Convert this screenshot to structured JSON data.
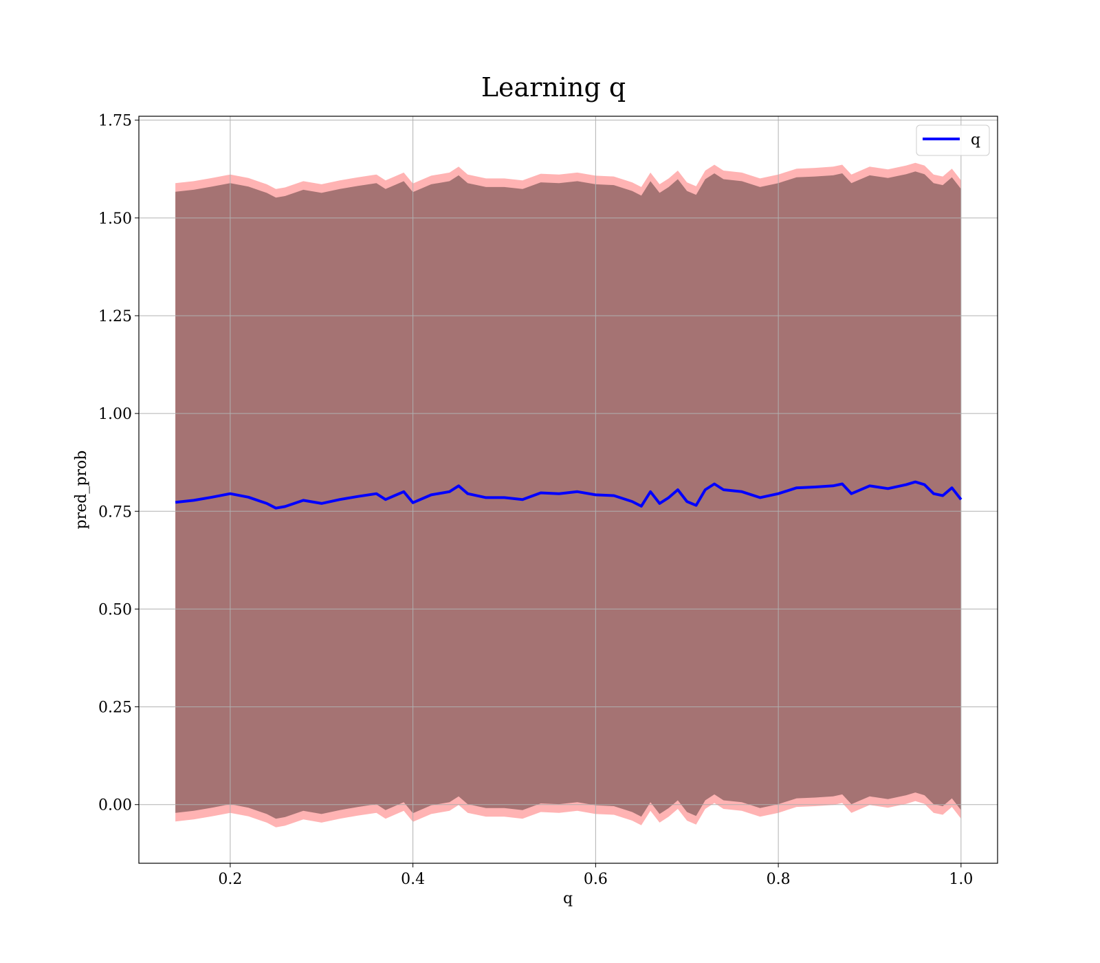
{
  "chart_data": {
    "type": "line",
    "title": "Learning q",
    "xlabel": "q",
    "ylabel": "pred_prob",
    "xlim": [
      0.1,
      1.04
    ],
    "ylim": [
      -0.15,
      1.76
    ],
    "xticks": [
      0.2,
      0.4,
      0.6,
      0.8,
      1.0
    ],
    "xtick_labels": [
      "0.2",
      "0.4",
      "0.6",
      "0.8",
      "1.0"
    ],
    "yticks": [
      0.0,
      0.25,
      0.5,
      0.75,
      1.0,
      1.25,
      1.5,
      1.75
    ],
    "ytick_labels": [
      "0.00",
      "0.25",
      "0.50",
      "0.75",
      "1.00",
      "1.25",
      "1.50",
      "1.75"
    ],
    "grid": true,
    "legend_position": "top-right",
    "series": [
      {
        "name": "q",
        "color": "#0000ff",
        "x": [
          0.14,
          0.16,
          0.18,
          0.2,
          0.22,
          0.24,
          0.25,
          0.26,
          0.28,
          0.3,
          0.32,
          0.34,
          0.36,
          0.37,
          0.38,
          0.39,
          0.4,
          0.42,
          0.44,
          0.45,
          0.46,
          0.48,
          0.5,
          0.52,
          0.54,
          0.56,
          0.58,
          0.6,
          0.62,
          0.64,
          0.65,
          0.66,
          0.67,
          0.68,
          0.69,
          0.7,
          0.71,
          0.72,
          0.73,
          0.74,
          0.76,
          0.78,
          0.8,
          0.82,
          0.84,
          0.86,
          0.87,
          0.88,
          0.9,
          0.92,
          0.94,
          0.95,
          0.96,
          0.97,
          0.98,
          0.99,
          1.0
        ],
        "values": [
          0.773,
          0.778,
          0.786,
          0.795,
          0.786,
          0.77,
          0.758,
          0.762,
          0.778,
          0.77,
          0.78,
          0.788,
          0.795,
          0.78,
          0.79,
          0.8,
          0.772,
          0.792,
          0.8,
          0.815,
          0.795,
          0.785,
          0.785,
          0.78,
          0.797,
          0.795,
          0.8,
          0.792,
          0.79,
          0.775,
          0.763,
          0.8,
          0.77,
          0.785,
          0.805,
          0.775,
          0.765,
          0.805,
          0.82,
          0.805,
          0.8,
          0.785,
          0.795,
          0.81,
          0.812,
          0.815,
          0.82,
          0.795,
          0.815,
          0.808,
          0.818,
          0.825,
          0.818,
          0.795,
          0.79,
          0.81,
          0.78
        ]
      }
    ],
    "bands": [
      {
        "color": "#ff8080",
        "x": [
          0.14,
          0.16,
          0.18,
          0.2,
          0.22,
          0.24,
          0.25,
          0.26,
          0.28,
          0.3,
          0.32,
          0.34,
          0.36,
          0.37,
          0.38,
          0.39,
          0.4,
          0.42,
          0.44,
          0.45,
          0.46,
          0.48,
          0.5,
          0.52,
          0.54,
          0.56,
          0.58,
          0.6,
          0.62,
          0.64,
          0.65,
          0.66,
          0.67,
          0.68,
          0.69,
          0.7,
          0.71,
          0.72,
          0.73,
          0.74,
          0.76,
          0.78,
          0.8,
          0.82,
          0.84,
          0.86,
          0.87,
          0.88,
          0.9,
          0.92,
          0.94,
          0.95,
          0.96,
          0.97,
          0.98,
          0.99,
          1.0
        ],
        "lower": [
          -0.043,
          -0.038,
          -0.03,
          -0.021,
          -0.03,
          -0.046,
          -0.058,
          -0.054,
          -0.038,
          -0.046,
          -0.036,
          -0.028,
          -0.021,
          -0.036,
          -0.026,
          -0.016,
          -0.044,
          -0.024,
          -0.016,
          -0.001,
          -0.021,
          -0.031,
          -0.031,
          -0.036,
          -0.019,
          -0.021,
          -0.016,
          -0.024,
          -0.026,
          -0.041,
          -0.053,
          -0.016,
          -0.046,
          -0.031,
          -0.011,
          -0.041,
          -0.051,
          -0.011,
          0.004,
          -0.011,
          -0.016,
          -0.031,
          -0.021,
          -0.006,
          -0.004,
          -0.001,
          0.004,
          -0.021,
          -0.001,
          -0.008,
          0.002,
          0.009,
          0.002,
          -0.021,
          -0.026,
          -0.006,
          -0.036
        ],
        "upper": [
          1.589,
          1.594,
          1.602,
          1.611,
          1.602,
          1.586,
          1.574,
          1.578,
          1.594,
          1.586,
          1.596,
          1.604,
          1.611,
          1.596,
          1.606,
          1.616,
          1.588,
          1.608,
          1.616,
          1.631,
          1.611,
          1.601,
          1.601,
          1.596,
          1.613,
          1.611,
          1.616,
          1.608,
          1.606,
          1.591,
          1.579,
          1.616,
          1.586,
          1.601,
          1.621,
          1.591,
          1.581,
          1.621,
          1.636,
          1.621,
          1.616,
          1.601,
          1.611,
          1.626,
          1.628,
          1.631,
          1.636,
          1.611,
          1.631,
          1.624,
          1.634,
          1.641,
          1.634,
          1.611,
          1.606,
          1.626,
          1.596
        ]
      },
      {
        "color": "#a07070",
        "x": [
          0.14,
          0.16,
          0.18,
          0.2,
          0.22,
          0.24,
          0.25,
          0.26,
          0.28,
          0.3,
          0.32,
          0.34,
          0.36,
          0.37,
          0.38,
          0.39,
          0.4,
          0.42,
          0.44,
          0.45,
          0.46,
          0.48,
          0.5,
          0.52,
          0.54,
          0.56,
          0.58,
          0.6,
          0.62,
          0.64,
          0.65,
          0.66,
          0.67,
          0.68,
          0.69,
          0.7,
          0.71,
          0.72,
          0.73,
          0.74,
          0.76,
          0.78,
          0.8,
          0.82,
          0.84,
          0.86,
          0.87,
          0.88,
          0.9,
          0.92,
          0.94,
          0.95,
          0.96,
          0.97,
          0.98,
          0.99,
          1.0
        ],
        "lower": [
          -0.021,
          -0.016,
          -0.008,
          0.001,
          -0.008,
          -0.024,
          -0.036,
          -0.032,
          -0.016,
          -0.024,
          -0.014,
          -0.006,
          0.001,
          -0.014,
          -0.004,
          0.006,
          -0.022,
          -0.002,
          0.006,
          0.021,
          0.001,
          -0.009,
          -0.009,
          -0.014,
          0.003,
          0.001,
          0.006,
          -0.002,
          -0.004,
          -0.019,
          -0.031,
          0.006,
          -0.024,
          -0.009,
          0.011,
          -0.019,
          -0.029,
          0.011,
          0.026,
          0.011,
          0.006,
          -0.009,
          0.001,
          0.016,
          0.018,
          0.021,
          0.026,
          0.001,
          0.021,
          0.014,
          0.024,
          0.031,
          0.024,
          0.001,
          -0.004,
          0.016,
          -0.014
        ],
        "upper": [
          1.567,
          1.572,
          1.58,
          1.589,
          1.58,
          1.564,
          1.552,
          1.556,
          1.572,
          1.564,
          1.574,
          1.582,
          1.589,
          1.574,
          1.584,
          1.594,
          1.566,
          1.586,
          1.594,
          1.609,
          1.589,
          1.579,
          1.579,
          1.574,
          1.591,
          1.589,
          1.594,
          1.586,
          1.584,
          1.569,
          1.557,
          1.594,
          1.564,
          1.579,
          1.599,
          1.569,
          1.559,
          1.599,
          1.614,
          1.599,
          1.594,
          1.579,
          1.589,
          1.604,
          1.606,
          1.609,
          1.614,
          1.589,
          1.609,
          1.602,
          1.612,
          1.619,
          1.612,
          1.589,
          1.584,
          1.604,
          1.574
        ]
      }
    ]
  }
}
